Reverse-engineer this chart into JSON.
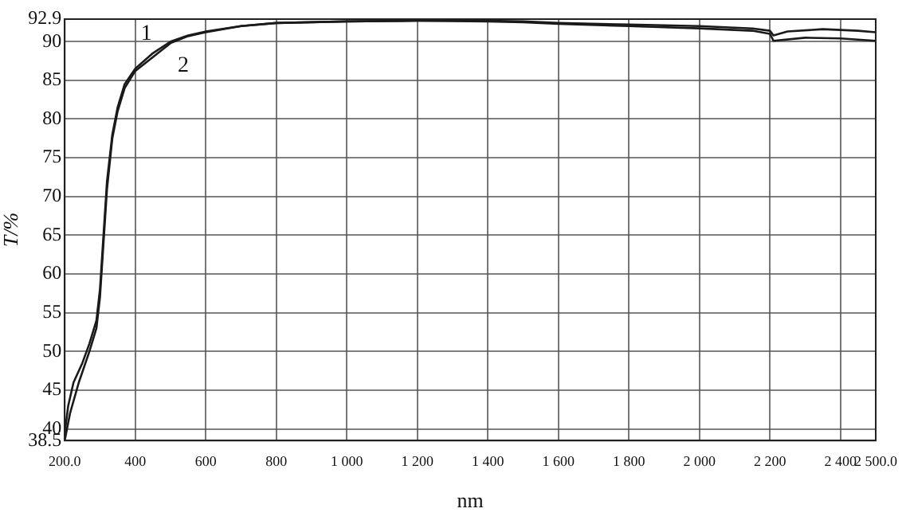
{
  "chart_data": {
    "type": "line",
    "xlabel": "nm",
    "ylabel": "T/%",
    "xlim": [
      200,
      2500
    ],
    "ylim": [
      38.5,
      92.9
    ],
    "xticks": [
      {
        "value": 200,
        "label": "200.0"
      },
      400,
      600,
      800,
      {
        "value": 1000,
        "label": "1 000"
      },
      {
        "value": 1200,
        "label": "1 200"
      },
      {
        "value": 1400,
        "label": "1 400"
      },
      {
        "value": 1600,
        "label": "1 600"
      },
      {
        "value": 1800,
        "label": "1 800"
      },
      {
        "value": 2000,
        "label": "2 000"
      },
      {
        "value": 2200,
        "label": "2 200"
      },
      {
        "value": 2400,
        "label": "2 400"
      },
      {
        "value": 2500,
        "label": "2 500.0"
      }
    ],
    "yticks": [
      38.5,
      40,
      45,
      50,
      55,
      60,
      65,
      70,
      75,
      80,
      85,
      90,
      92.9
    ],
    "grid": true,
    "marker": "none",
    "line_style": "solid",
    "series": [
      {
        "name": "1",
        "color": "#1a1a1a",
        "x": [
          200,
          210,
          225,
          250,
          270,
          290,
          300,
          310,
          320,
          335,
          350,
          370,
          400,
          450,
          500,
          550,
          600,
          700,
          800,
          1000,
          1200,
          1400,
          1500,
          1600,
          1800,
          2000,
          2150,
          2200,
          2210,
          2250,
          2350,
          2450,
          2500
        ],
        "values": [
          39.5,
          43,
          46,
          48.5,
          51,
          54,
          58,
          65,
          72,
          78,
          81.5,
          84.5,
          86.5,
          88.5,
          90,
          90.8,
          91.3,
          92,
          92.4,
          92.6,
          92.7,
          92.7,
          92.6,
          92.4,
          92.2,
          92,
          91.7,
          91.4,
          90.8,
          91.3,
          91.6,
          91.4,
          91.2
        ]
      },
      {
        "name": "2",
        "color": "#1a1a1a",
        "x": [
          200,
          215,
          240,
          270,
          290,
          300,
          310,
          320,
          335,
          350,
          370,
          400,
          450,
          500,
          550,
          600,
          700,
          800,
          1000,
          1200,
          1400,
          1500,
          1600,
          1800,
          2000,
          2150,
          2200,
          2210,
          2300,
          2400,
          2500
        ],
        "values": [
          38.5,
          42,
          46,
          50,
          53,
          57,
          64,
          71,
          77.5,
          81,
          84,
          86.2,
          88,
          89.8,
          90.7,
          91.2,
          92,
          92.4,
          92.6,
          92.7,
          92.6,
          92.5,
          92.3,
          92,
          91.7,
          91.4,
          91,
          90.1,
          90.5,
          90.4,
          90.1
        ]
      }
    ]
  }
}
